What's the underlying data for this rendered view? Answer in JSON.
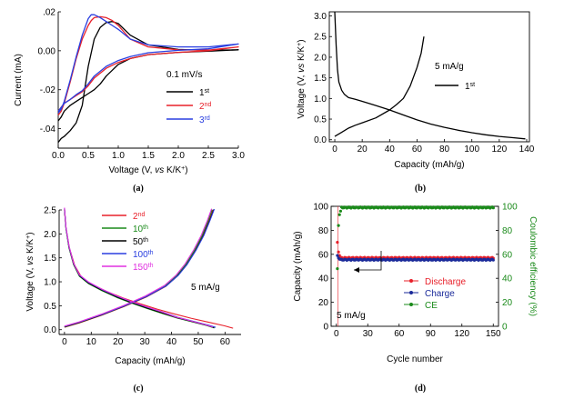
{
  "chart_data": [
    {
      "panel": "(a)",
      "type": "line",
      "xlabel": "Voltage (V, vs K/K+)",
      "ylabel": "Current (mA)",
      "xlim": [
        0,
        3.0
      ],
      "ylim": [
        -0.05,
        0.02
      ],
      "xticks": [
        "0.0",
        "0.5",
        "1.0",
        "1.5",
        "2.0",
        "2.5",
        "3.0"
      ],
      "yticks": [
        ".02",
        "0.00",
        "-.02",
        "-.04"
      ],
      "legend_title": "0.1 mV/s",
      "legend_position": "right",
      "series": [
        {
          "name": "1st",
          "color": "#000000",
          "x": [
            0.0,
            0.05,
            0.1,
            0.2,
            0.3,
            0.4,
            0.5,
            0.6,
            0.7,
            0.8,
            0.9,
            1.0,
            1.2,
            1.5,
            2.0,
            2.5,
            3.0,
            2.5,
            2.0,
            1.5,
            1.2,
            1.0,
            0.9,
            0.8,
            0.7,
            0.6,
            0.5,
            0.4,
            0.3,
            0.2,
            0.1,
            0.05,
            0.0
          ],
          "y": [
            -0.047,
            -0.045,
            -0.044,
            -0.041,
            -0.037,
            -0.028,
            -0.008,
            0.006,
            0.012,
            0.0145,
            0.015,
            0.014,
            0.008,
            0.003,
            0.0007,
            0.0002,
            0.0005,
            -0.0002,
            -0.0008,
            -0.002,
            -0.004,
            -0.007,
            -0.01,
            -0.013,
            -0.017,
            -0.02,
            -0.022,
            -0.024,
            -0.026,
            -0.028,
            -0.031,
            -0.034,
            -0.036
          ]
        },
        {
          "name": "2nd",
          "color": "#e8202a",
          "x": [
            0.0,
            0.05,
            0.1,
            0.2,
            0.3,
            0.4,
            0.5,
            0.55,
            0.6,
            0.7,
            0.8,
            0.9,
            1.0,
            1.2,
            1.5,
            2.0,
            2.5,
            3.0,
            2.5,
            2.0,
            1.5,
            1.2,
            1.0,
            0.8,
            0.6,
            0.5,
            0.4,
            0.3,
            0.2,
            0.1,
            0.05,
            0.0
          ],
          "y": [
            -0.033,
            -0.031,
            -0.027,
            -0.016,
            -0.004,
            0.006,
            0.013,
            0.0155,
            0.017,
            0.0175,
            0.017,
            0.0155,
            0.013,
            0.006,
            0.002,
            0.0005,
            0.0003,
            0.002,
            0.0,
            -0.0008,
            -0.002,
            -0.004,
            -0.006,
            -0.009,
            -0.014,
            -0.018,
            -0.021,
            -0.023,
            -0.025,
            -0.027,
            -0.029,
            -0.031
          ]
        },
        {
          "name": "3rd",
          "color": "#2a3fe0",
          "x": [
            0.0,
            0.05,
            0.1,
            0.2,
            0.3,
            0.4,
            0.5,
            0.55,
            0.6,
            0.7,
            0.8,
            0.9,
            1.0,
            1.2,
            1.5,
            2.0,
            2.5,
            3.0,
            2.5,
            2.0,
            1.5,
            1.2,
            1.0,
            0.8,
            0.6,
            0.5,
            0.4,
            0.3,
            0.2,
            0.1,
            0.05,
            0.0
          ],
          "y": [
            -0.032,
            -0.03,
            -0.026,
            -0.015,
            -0.003,
            0.008,
            0.0165,
            0.0185,
            0.0185,
            0.017,
            0.015,
            0.013,
            0.011,
            0.006,
            0.003,
            0.002,
            0.002,
            0.0035,
            0.001,
            0.0002,
            -0.001,
            -0.003,
            -0.005,
            -0.008,
            -0.013,
            -0.017,
            -0.0205,
            -0.0225,
            -0.025,
            -0.027,
            -0.029,
            -0.031
          ]
        }
      ]
    },
    {
      "panel": "(b)",
      "type": "line",
      "xlabel": "Capacity (mAh/g)",
      "ylabel": "Voltage (V, vs K/K+)",
      "xlim": [
        0,
        140
      ],
      "ylim": [
        0,
        3.1
      ],
      "xticks": [
        "0",
        "20",
        "40",
        "60",
        "80",
        "100",
        "120",
        "140"
      ],
      "yticks": [
        "0.0",
        "0.5",
        "1.0",
        "1.5",
        "2.0",
        "2.5",
        "3.0"
      ],
      "legend_title": "5 mA/g",
      "series": [
        {
          "name": "1st",
          "color": "#000000",
          "x": [
            0,
            1,
            2,
            3,
            5,
            7,
            10,
            15,
            20,
            30,
            40,
            50,
            60,
            70,
            80,
            90,
            100,
            110,
            120,
            130,
            139
          ],
          "y": [
            3.1,
            2.3,
            1.7,
            1.4,
            1.2,
            1.1,
            1.02,
            0.98,
            0.93,
            0.83,
            0.72,
            0.6,
            0.48,
            0.38,
            0.3,
            0.23,
            0.17,
            0.12,
            0.08,
            0.05,
            0.02
          ]
        },
        {
          "name": "",
          "color": "#000000",
          "x": [
            0,
            5,
            10,
            15,
            20,
            30,
            40,
            45,
            50,
            55,
            60,
            63,
            65
          ],
          "y": [
            0.08,
            0.18,
            0.28,
            0.35,
            0.41,
            0.53,
            0.72,
            0.85,
            1.0,
            1.3,
            1.75,
            2.1,
            2.5
          ]
        }
      ]
    },
    {
      "panel": "(c)",
      "type": "line",
      "xlabel": "Capacity (mAh/g)",
      "ylabel": "Voltage (V, vs K/K+)",
      "xlim": [
        -2,
        66
      ],
      "ylim": [
        -0.1,
        2.5
      ],
      "xticks": [
        "0",
        "10",
        "20",
        "30",
        "40",
        "50",
        "60"
      ],
      "yticks": [
        "0.0",
        "0.5",
        "1.0",
        "1.5",
        "2.0",
        "2.5"
      ],
      "legend_title": "5 mA/g",
      "series": [
        {
          "name": "2nd",
          "color": "#e8202a",
          "xmax": 63,
          "xcharge": 55.5
        },
        {
          "name": "10th",
          "color": "#1a8a1a",
          "xmax": 56,
          "xcharge": 55.2
        },
        {
          "name": "50th",
          "color": "#000000",
          "xmax": 56,
          "xcharge": 55.8
        },
        {
          "name": "100th",
          "color": "#2a3fe0",
          "xmax": 56.5,
          "xcharge": 56.0
        },
        {
          "name": "150th",
          "color": "#e030e0",
          "xmax": 55.5,
          "xcharge": 55.0
        }
      ]
    },
    {
      "panel": "(d)",
      "type": "scatter",
      "xlabel": "Cycle number",
      "ylabel": "Capacity (mAh/g)",
      "y2label": "Coulombic efficiency (%)",
      "xlim": [
        0,
        150
      ],
      "ylim": [
        0,
        100
      ],
      "y2lim": [
        0,
        100
      ],
      "xticks": [
        "0",
        "30",
        "60",
        "90",
        "120",
        "150"
      ],
      "yticks": [
        "0",
        "20",
        "40",
        "60",
        "80",
        "100"
      ],
      "y2ticks": [
        "0",
        "20",
        "40",
        "60",
        "80",
        "100"
      ],
      "annotation": "5 mA/g",
      "legend_position": "right",
      "series": [
        {
          "name": "Discharge",
          "color": "#e8202a",
          "first": [
            70,
            62,
            59
          ],
          "value": 57
        },
        {
          "name": "Charge",
          "color": "#1a2a9a",
          "first": [
            59,
            57,
            56
          ],
          "value": 55.5
        },
        {
          "name": "CE",
          "color": "#1a8a1a",
          "axis": "right",
          "first": [
            48,
            84,
            93,
            96
          ],
          "value": 99
        }
      ]
    }
  ],
  "captions": {
    "a": "(a)",
    "b": "(b)",
    "c": "(c)",
    "d": "(d)"
  },
  "labels": {
    "a_xlabel_pre": "Voltage (V, ",
    "a_xlabel_vs": "vs",
    "a_xlabel_post": " K/K",
    "sup_plus": "+",
    "b_ylabel_pre": "Voltage (V, ",
    "b_ylabel_vs": "vs",
    "b_ylabel_post": " K/K",
    "cd_xlabel_cap": "Capacity (mAh/g)",
    "a_legend_title": "0.1 mV/s",
    "b_legend_title": "5 mA/g",
    "c_note": "5 mA/g",
    "d_note": "5 mA/g"
  }
}
